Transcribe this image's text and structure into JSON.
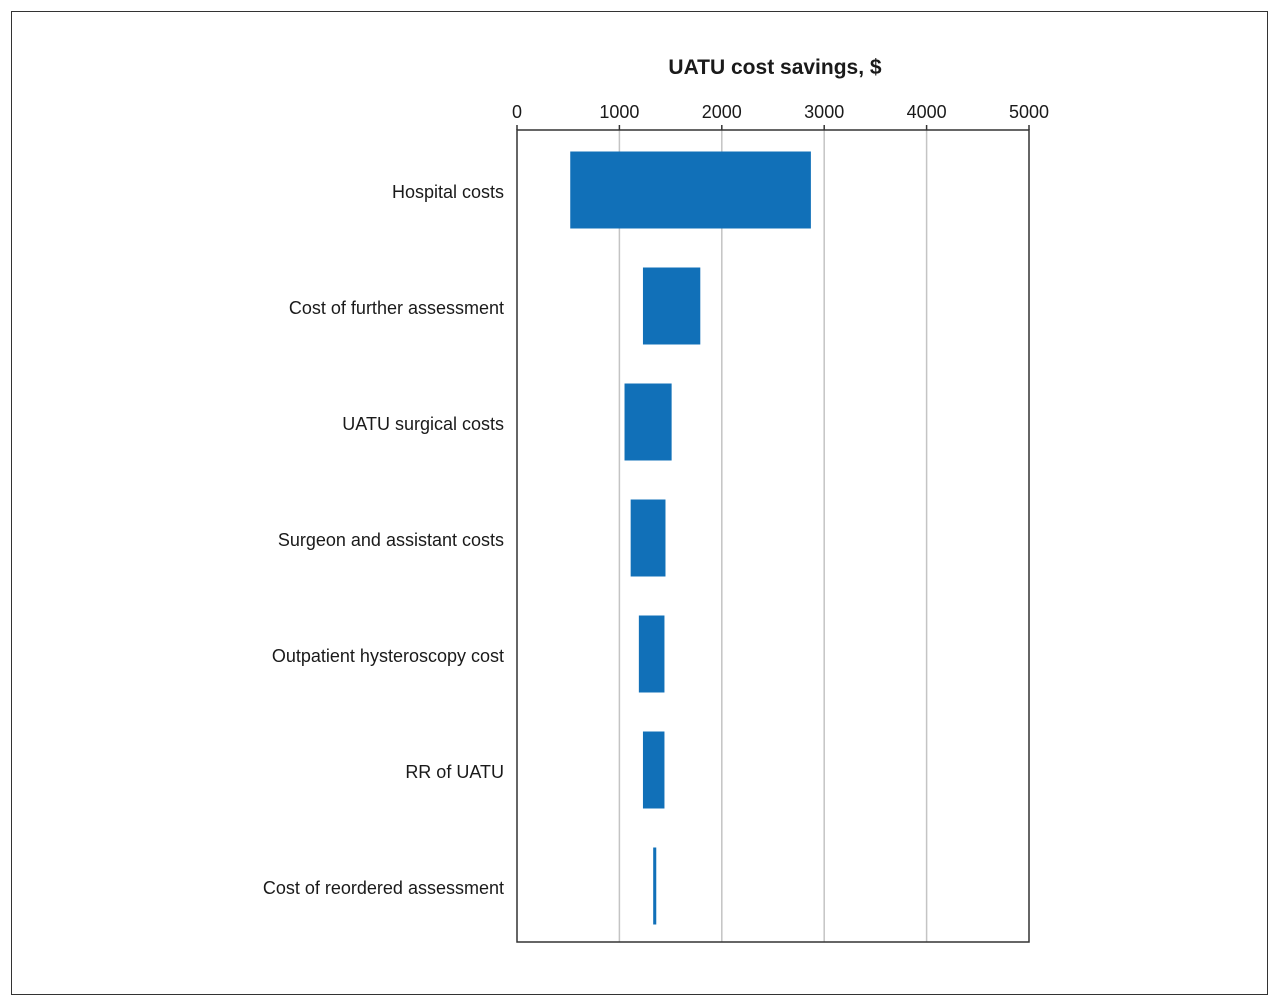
{
  "chart_data": {
    "type": "bar",
    "orientation": "horizontal",
    "variant": "tornado",
    "title": "UATU cost savings, $",
    "xlim": [
      0,
      5000
    ],
    "xticks": [
      "0",
      "1000",
      "2000",
      "3000",
      "4000",
      "5000"
    ],
    "x_axis_position": "top",
    "grid": "vertical",
    "categories": [
      "Hospital costs",
      "Cost of further assessment",
      "UATU surgical costs",
      "Surgeon and assistant costs",
      "Outpatient hysteroscopy cost",
      "RR of UATU",
      "Cost of reordered assessment"
    ],
    "ranges": [
      [
        520,
        2870
      ],
      [
        1230,
        1790
      ],
      [
        1050,
        1510
      ],
      [
        1110,
        1450
      ],
      [
        1190,
        1440
      ],
      [
        1230,
        1440
      ],
      [
        1330,
        1360
      ]
    ],
    "colors": {
      "bar": "#1170b8",
      "grid": "#c4c4c4",
      "axis": "#333333"
    }
  }
}
